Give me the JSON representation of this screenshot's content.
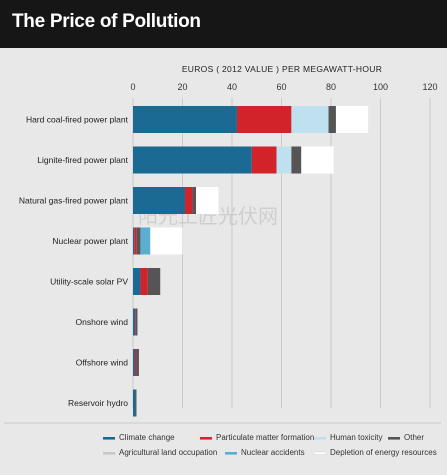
{
  "title": "The Price of Pollution",
  "watermark": "阳光工匠光伏网",
  "chart_data": {
    "type": "bar",
    "orientation": "horizontal",
    "stacked": true,
    "title": "The Price of Pollution",
    "xlabel": "EUROS ( 2012 VALUE ) PER MEGAWATT-HOUR",
    "xlim": [
      0,
      120
    ],
    "xticks": [
      0,
      20,
      40,
      60,
      80,
      100,
      120
    ],
    "grid": true,
    "legend_position": "bottom",
    "categories": [
      "Hard coal-fired power plant",
      "Lignite-fired power plant",
      "Natural gas-fired power plant",
      "Nuclear power plant",
      "Utility-scale solar PV",
      "Onshore wind",
      "Offshore wind",
      "Reservoir hydro"
    ],
    "series": [
      {
        "name": "Climate change",
        "color": "#1b6a94",
        "values": [
          42,
          48,
          21,
          0.5,
          3,
          0.8,
          0.8,
          1
        ]
      },
      {
        "name": "Particulate matter formation",
        "color": "#d2232a",
        "values": [
          22,
          10,
          3,
          1,
          3,
          0.3,
          0.6,
          0
        ]
      },
      {
        "name": "Human toxicity",
        "color": "#bfe0ee",
        "values": [
          15,
          6,
          0,
          0,
          0,
          0,
          0,
          0
        ]
      },
      {
        "name": "Other",
        "color": "#555555",
        "values": [
          3,
          4,
          1.5,
          1.5,
          5,
          0.7,
          1,
          0.4
        ]
      },
      {
        "name": "Agricultural land occupation",
        "color": "#c8c8c8",
        "values": [
          0,
          0,
          0,
          0,
          0,
          0,
          0,
          0
        ]
      },
      {
        "name": "Nuclear accidents",
        "color": "#5aaed0",
        "values": [
          0,
          0,
          0,
          4,
          0,
          0,
          0,
          0
        ]
      },
      {
        "name": "Depletion of energy resources",
        "color": "#ffffff",
        "values": [
          13,
          13,
          9,
          13,
          0,
          0,
          0,
          0
        ]
      }
    ]
  }
}
